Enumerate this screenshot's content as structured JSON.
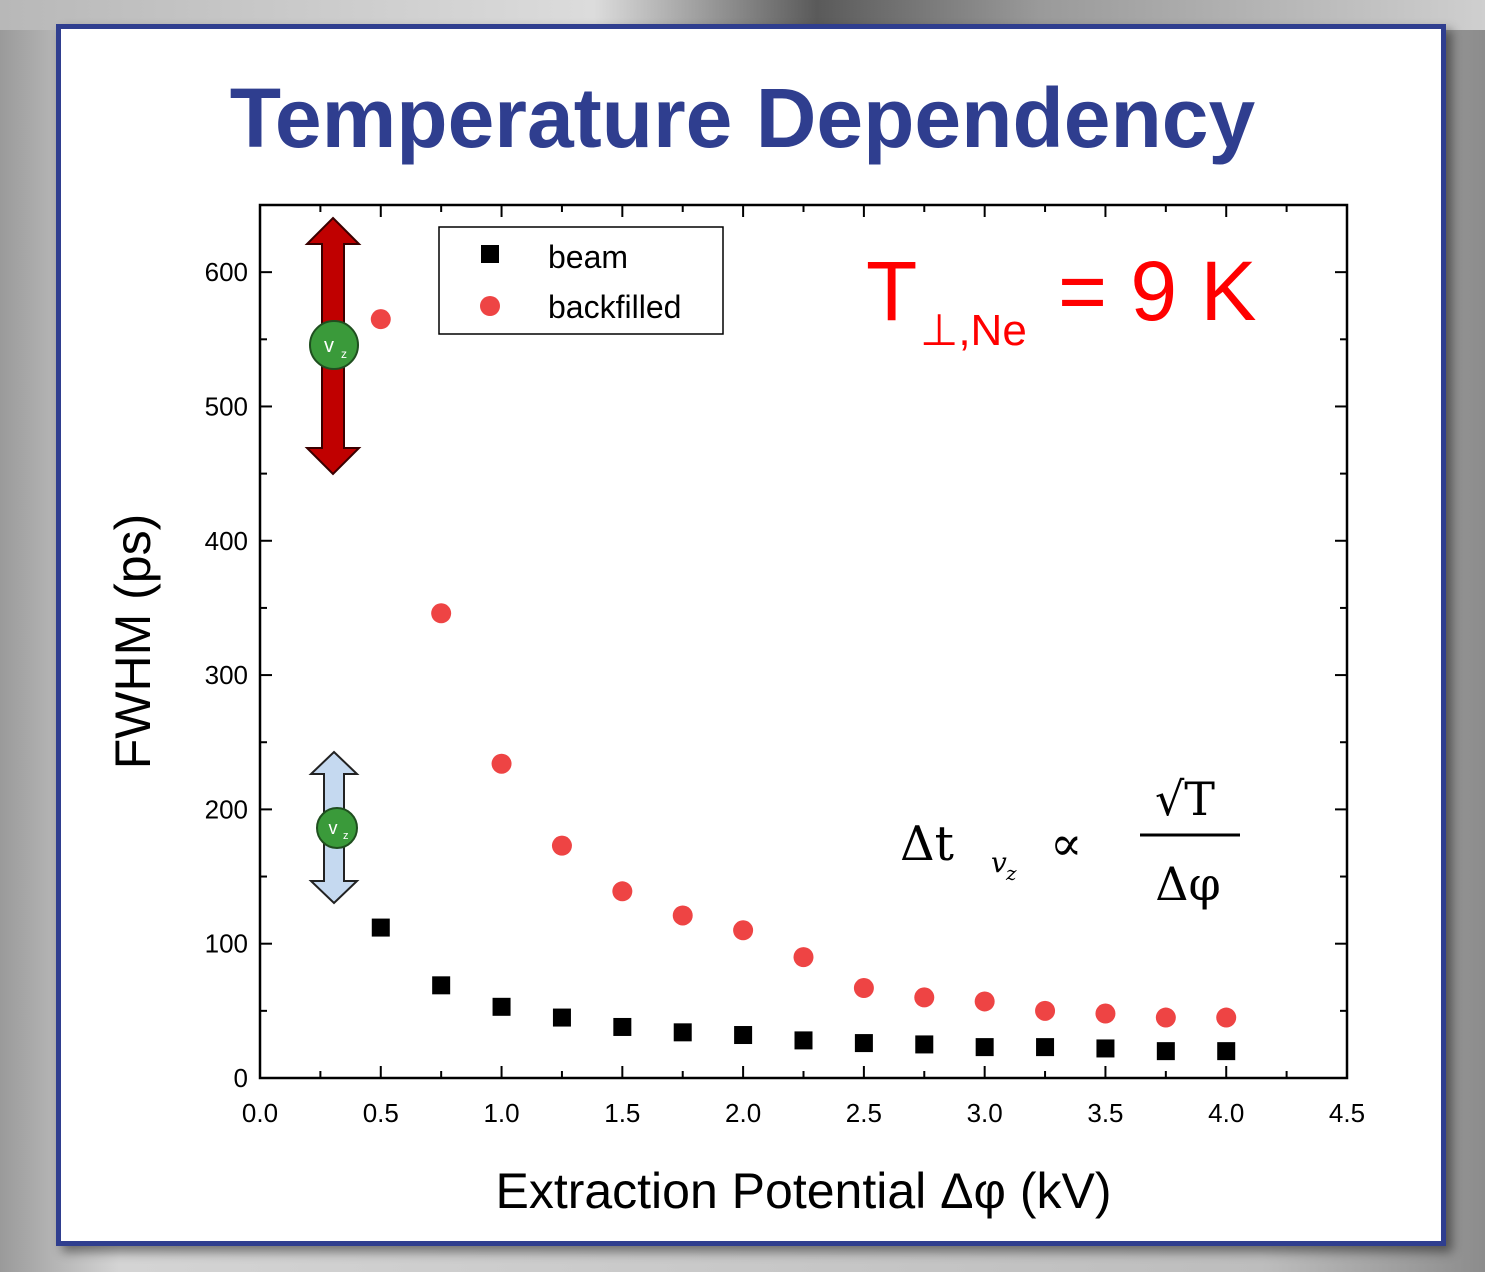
{
  "slide": {
    "title": "Temperature Dependency"
  },
  "annotation": {
    "temp_T": "T",
    "temp_sub": "⊥,Ne",
    "temp_eq": "= 9 K",
    "vz_label": "v",
    "vz_sub": "z",
    "formula_lhs": "Δt",
    "formula_lhs_sub": "v",
    "formula_lhs_subsub": "z",
    "formula_prop": "∝",
    "formula_num": "√T",
    "formula_den": "Δφ"
  },
  "colors": {
    "beam": "#000000",
    "backfilled": "#ee4444",
    "title": "#2f3e8f",
    "annotation": "#ff0000",
    "big_arrow": "#c00000",
    "small_arrow": "#c5d9f0",
    "vz_circle": "#3a9a3a"
  },
  "chart_data": {
    "type": "scatter",
    "xlabel": "Extraction Potential Δφ (kV)",
    "ylabel": "FWHM (ps)",
    "xlim": [
      0.0,
      4.5
    ],
    "ylim": [
      0,
      650
    ],
    "xticks": [
      "0.0",
      "0.5",
      "1.0",
      "1.5",
      "2.0",
      "2.5",
      "3.0",
      "3.5",
      "4.0",
      "4.5"
    ],
    "yticks": [
      "0",
      "100",
      "200",
      "300",
      "400",
      "500",
      "600"
    ],
    "legend_position": "top-left",
    "grid": false,
    "series": [
      {
        "name": "beam",
        "marker": "square",
        "x": [
          0.5,
          0.75,
          1.0,
          1.25,
          1.5,
          1.75,
          2.0,
          2.25,
          2.5,
          2.75,
          3.0,
          3.25,
          3.5,
          3.75,
          4.0
        ],
        "y": [
          112,
          69,
          53,
          45,
          38,
          34,
          32,
          28,
          26,
          25,
          23,
          23,
          22,
          20,
          20
        ]
      },
      {
        "name": "backfilled",
        "marker": "circle",
        "x": [
          0.5,
          0.75,
          1.0,
          1.25,
          1.5,
          1.75,
          2.0,
          2.25,
          2.5,
          2.75,
          3.0,
          3.25,
          3.5,
          3.75,
          4.0
        ],
        "y": [
          565,
          346,
          234,
          173,
          139,
          121,
          110,
          90,
          67,
          60,
          57,
          50,
          48,
          45,
          45
        ]
      }
    ]
  }
}
